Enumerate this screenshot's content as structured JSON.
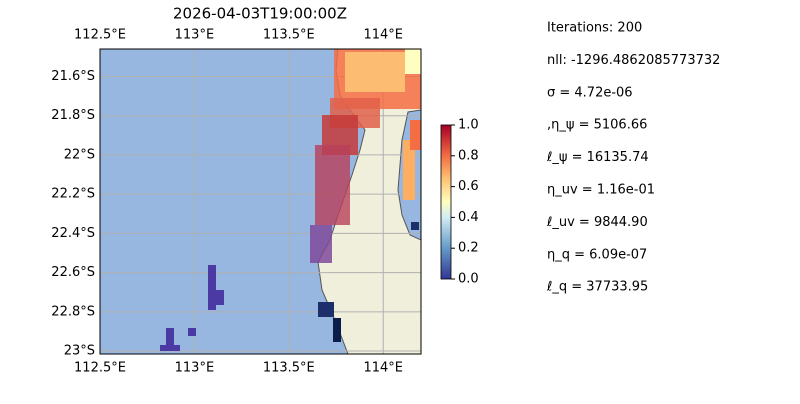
{
  "map": {
    "title": "2026-04-03T19:00:00Z",
    "xlim": [
      112.5,
      114.2
    ],
    "ylim": [
      -23.015,
      -21.46
    ],
    "lon_ticks": [
      {
        "value": 112.5,
        "label": "112.5°E"
      },
      {
        "value": 113,
        "label": "113°E"
      },
      {
        "value": 113.5,
        "label": "113.5°E"
      },
      {
        "value": 114,
        "label": "114°E"
      }
    ],
    "lat_ticks": [
      {
        "value": -21.6,
        "label": "21.6°S"
      },
      {
        "value": -21.8,
        "label": "21.8°S"
      },
      {
        "value": -22,
        "label": "22°S"
      },
      {
        "value": -22.2,
        "label": "22.2°S"
      },
      {
        "value": -22.4,
        "label": "22.4°S"
      },
      {
        "value": -22.6,
        "label": "22.6°S"
      },
      {
        "value": -22.8,
        "label": "22.8°S"
      },
      {
        "value": -23,
        "label": "23°S"
      }
    ],
    "grid": true
  },
  "colorbar": {
    "lim": [
      0,
      1
    ],
    "ticks": [
      {
        "value": 0,
        "label": "0.0"
      },
      {
        "value": 0.2,
        "label": "0.2"
      },
      {
        "value": 0.4,
        "label": "0.4"
      },
      {
        "value": 0.6,
        "label": "0.6"
      },
      {
        "value": 0.8,
        "label": "0.8"
      },
      {
        "value": 1,
        "label": "1.0"
      }
    ]
  },
  "info": [
    "Iterations: 200",
    "nll: -1296.4862085773732",
    "σ = 4.72e-06",
    ",η_ψ = 5106.66",
    "ℓ_ψ = 16135.74",
    "η_uv = 1.16e-01",
    "ℓ_uv = 9844.90",
    "η_q = 6.09e-07",
    "ℓ_q = 37733.95"
  ]
}
